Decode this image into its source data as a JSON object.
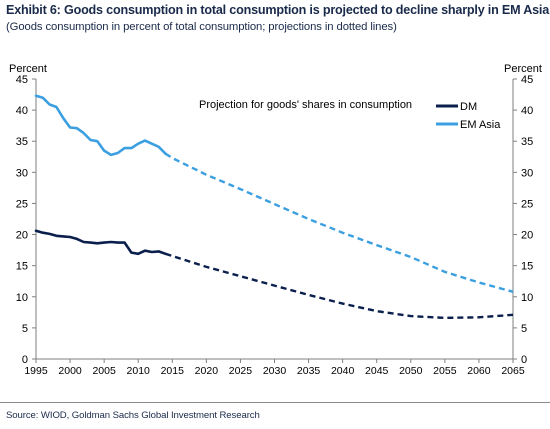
{
  "header": {
    "title": "Exhibit 6: Goods consumption in total consumption is projected to decline sharply in EM Asia",
    "subtitle": "(Goods consumption in percent of total consumption; projections in dotted lines)"
  },
  "footer": {
    "source": "Source: WIOD, Goldman Sachs Global Investment Research"
  },
  "colors": {
    "dm": "#0b1f4d",
    "em_asia": "#3b9fe0",
    "axis": "#7f7f7f",
    "text": "#000000"
  },
  "chart_data": {
    "type": "line",
    "title": "",
    "annotation": "Projection for goods' shares in consumption",
    "ylabel_left": "Percent",
    "ylabel_right": "Percent",
    "xlabel": "",
    "xlim": [
      1995,
      2065
    ],
    "ylim": [
      0,
      45
    ],
    "x_ticks": [
      "1995",
      "2000",
      "2005",
      "2010",
      "2015",
      "2020",
      "2025",
      "2030",
      "2035",
      "2040",
      "2045",
      "2050",
      "2055",
      "2060",
      "2065"
    ],
    "y_ticks": [
      "0",
      "5",
      "10",
      "15",
      "20",
      "25",
      "30",
      "35",
      "40",
      "45"
    ],
    "grid": false,
    "legend_position": "top-right",
    "series": [
      {
        "name": "DM",
        "color": "#0b1f4d",
        "historical": {
          "x": [
            1995,
            1996,
            1997,
            1998,
            1999,
            2000,
            2001,
            2002,
            2003,
            2004,
            2005,
            2006,
            2007,
            2008,
            2009,
            2010,
            2011,
            2012,
            2013,
            2014
          ],
          "y": [
            20.6,
            20.3,
            20.1,
            19.8,
            19.7,
            19.6,
            19.3,
            18.8,
            18.7,
            18.6,
            18.7,
            18.8,
            18.7,
            18.7,
            17.1,
            16.9,
            17.4,
            17.2,
            17.3,
            16.9
          ]
        },
        "projection": {
          "x": [
            2014,
            2020,
            2025,
            2030,
            2035,
            2040,
            2045,
            2050,
            2055,
            2060,
            2065
          ],
          "y": [
            16.9,
            14.8,
            13.3,
            11.8,
            10.3,
            8.9,
            7.7,
            6.9,
            6.6,
            6.7,
            7.1
          ]
        }
      },
      {
        "name": "EM Asia",
        "color": "#3b9fe0",
        "historical": {
          "x": [
            1995,
            1996,
            1997,
            1998,
            1999,
            2000,
            2001,
            2002,
            2003,
            2004,
            2005,
            2006,
            2007,
            2008,
            2009,
            2010,
            2011,
            2012,
            2013,
            2014
          ],
          "y": [
            42.3,
            42.0,
            40.9,
            40.5,
            38.7,
            37.2,
            37.1,
            36.3,
            35.2,
            35.0,
            33.5,
            32.8,
            33.1,
            33.9,
            33.9,
            34.6,
            35.1,
            34.6,
            34.1,
            33.0
          ]
        },
        "projection": {
          "x": [
            2014,
            2015,
            2020,
            2025,
            2030,
            2035,
            2040,
            2045,
            2050,
            2055,
            2060,
            2065
          ],
          "y": [
            33.0,
            32.3,
            29.6,
            27.3,
            24.9,
            22.5,
            20.3,
            18.3,
            16.4,
            14.0,
            12.3,
            10.8
          ]
        }
      }
    ]
  }
}
